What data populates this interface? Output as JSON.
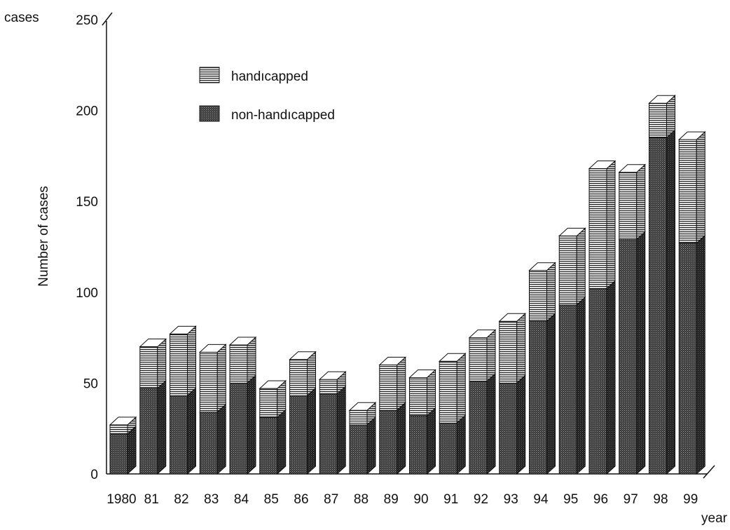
{
  "chart_data": {
    "type": "bar",
    "stacked": true,
    "three_d": true,
    "ylabel": "Number of cases",
    "y_unit_label": "cases",
    "xlabel": "year",
    "ylim": [
      0,
      250
    ],
    "yticks": [
      0,
      50,
      100,
      150,
      200,
      250
    ],
    "categories": [
      "1980",
      "81",
      "82",
      "83",
      "84",
      "85",
      "86",
      "87",
      "88",
      "89",
      "90",
      "91",
      "92",
      "93",
      "94",
      "95",
      "96",
      "97",
      "98",
      "99"
    ],
    "series": [
      {
        "name": "non-handıcapped",
        "pattern": "dots",
        "color": "#333333",
        "values": [
          22,
          47,
          43,
          34,
          50,
          31,
          43,
          44,
          27,
          35,
          32,
          28,
          51,
          50,
          84,
          93,
          102,
          129,
          185,
          127
        ]
      },
      {
        "name": "handıcapped",
        "pattern": "horizontal-lines",
        "color": "#ffffff",
        "values": [
          5,
          23,
          34,
          33,
          21,
          16,
          20,
          8,
          8,
          25,
          21,
          34,
          24,
          34,
          28,
          38,
          66,
          37,
          19,
          57
        ]
      }
    ],
    "legend": {
      "placement": "upper-left",
      "order": [
        "handıcapped",
        "non-handıcapped"
      ]
    },
    "grid": false
  }
}
